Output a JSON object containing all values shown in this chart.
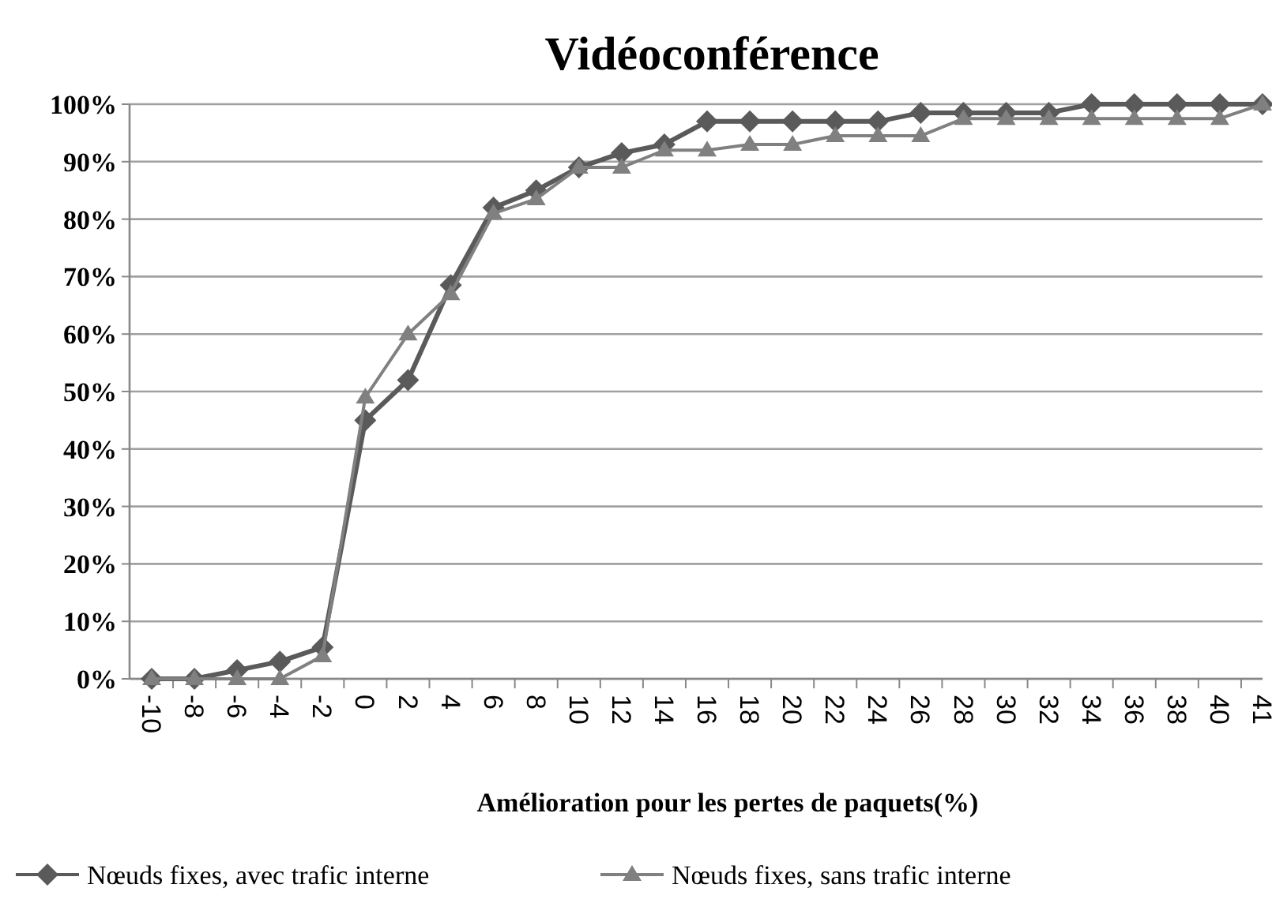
{
  "chart_data": {
    "type": "line",
    "title": "Vidéoconférence",
    "xlabel": "Amélioration pour les pertes de paquets(%)",
    "categories": [
      "-10",
      "-8",
      "-6",
      "-4",
      "-2",
      "0",
      "2",
      "4",
      "6",
      "8",
      "10",
      "12",
      "14",
      "16",
      "18",
      "20",
      "22",
      "24",
      "26",
      "28",
      "30",
      "32",
      "34",
      "36",
      "38",
      "40",
      "41"
    ],
    "series": [
      {
        "name": "Nœuds fixes, avec trafic interne",
        "color": "#5a5a5a",
        "marker": "diamond",
        "values": [
          0,
          0,
          1.5,
          3,
          5.5,
          45,
          52,
          68.5,
          82,
          85,
          89,
          91.5,
          93,
          97,
          97,
          97,
          97,
          97,
          98.5,
          98.5,
          98.5,
          98.5,
          100,
          100,
          100,
          100,
          100
        ]
      },
      {
        "name": "Nœuds fixes, sans trafic interne",
        "color": "#808080",
        "marker": "triangle",
        "values": [
          0,
          0,
          0,
          0,
          4,
          49,
          60,
          67,
          81,
          83.5,
          89,
          89,
          92,
          92,
          93,
          93,
          94.5,
          94.5,
          94.5,
          97.5,
          97.5,
          97.5,
          97.5,
          97.5,
          97.5,
          97.5,
          100
        ]
      }
    ],
    "ylim": [
      0,
      100
    ],
    "yticks": [
      {
        "value": 0,
        "label": "0%"
      },
      {
        "value": 10,
        "label": "10%"
      },
      {
        "value": 20,
        "label": "20%"
      },
      {
        "value": 30,
        "label": "30%"
      },
      {
        "value": 40,
        "label": "40%"
      },
      {
        "value": 50,
        "label": "50%"
      },
      {
        "value": 60,
        "label": "60%"
      },
      {
        "value": 70,
        "label": "70%"
      },
      {
        "value": 80,
        "label": "80%"
      },
      {
        "value": 90,
        "label": "90%"
      },
      {
        "value": 100,
        "label": "100%"
      }
    ],
    "grid": "y",
    "legend": "bottom",
    "line_style": "solid"
  }
}
